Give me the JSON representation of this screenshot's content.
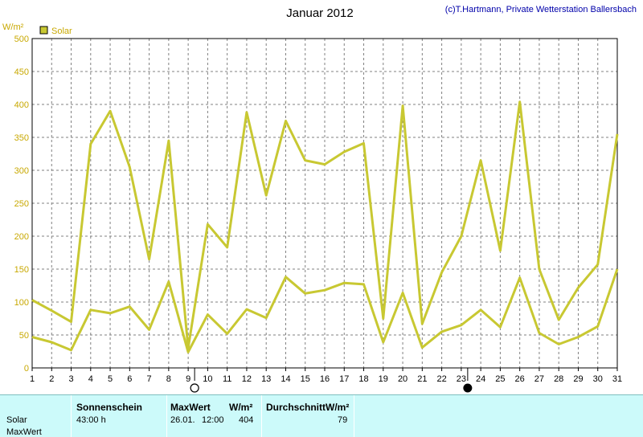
{
  "header": {
    "title": "Januar 2012",
    "credit": "(c)T.Hartmann, Private Wetterstation Ballersbach"
  },
  "colors": {
    "series": "#c8c832",
    "legend_box": "#c8c832",
    "axis_text": "#c8a800",
    "table_bg": "#ccfafa",
    "grid": "#808080"
  },
  "chart_data": {
    "type": "line",
    "ylabel": "W/m²",
    "ylim": [
      0,
      500
    ],
    "yticks": [
      0,
      50,
      100,
      150,
      200,
      250,
      300,
      350,
      400,
      450,
      500
    ],
    "x": [
      1,
      2,
      3,
      4,
      5,
      6,
      7,
      8,
      9,
      10,
      11,
      12,
      13,
      14,
      15,
      16,
      17,
      18,
      19,
      20,
      21,
      22,
      23,
      24,
      25,
      26,
      27,
      28,
      29,
      30,
      31
    ],
    "grid": true,
    "legend": "top-left",
    "series": [
      {
        "name": "Solar",
        "role": "max",
        "values": [
          103,
          87,
          70,
          340,
          390,
          305,
          165,
          345,
          30,
          218,
          183,
          388,
          262,
          375,
          315,
          309,
          328,
          341,
          75,
          398,
          67,
          145,
          200,
          315,
          178,
          404,
          150,
          73,
          122,
          157,
          355
        ]
      },
      {
        "name": "",
        "role": "average",
        "values": [
          47,
          39,
          27,
          88,
          83,
          93,
          58,
          131,
          24,
          81,
          52,
          89,
          76,
          138,
          113,
          118,
          129,
          127,
          39,
          114,
          31,
          55,
          65,
          88,
          62,
          137,
          53,
          36,
          47,
          63,
          150
        ]
      }
    ],
    "moon_markers": [
      {
        "day": 9,
        "phase": "full-moon"
      },
      {
        "day": 23,
        "phase": "new-moon"
      }
    ]
  },
  "table": {
    "rows": [
      "Solar",
      "MaxWert"
    ],
    "col1": {
      "header": "Sonnenschein",
      "value": "43:00 h"
    },
    "col2": {
      "header": "MaxWert",
      "unit": "W/m²",
      "date": "26.01.",
      "time": "12:00",
      "value": "404"
    },
    "col3": {
      "header": "DurchschnittW/m²",
      "value": "79"
    }
  }
}
